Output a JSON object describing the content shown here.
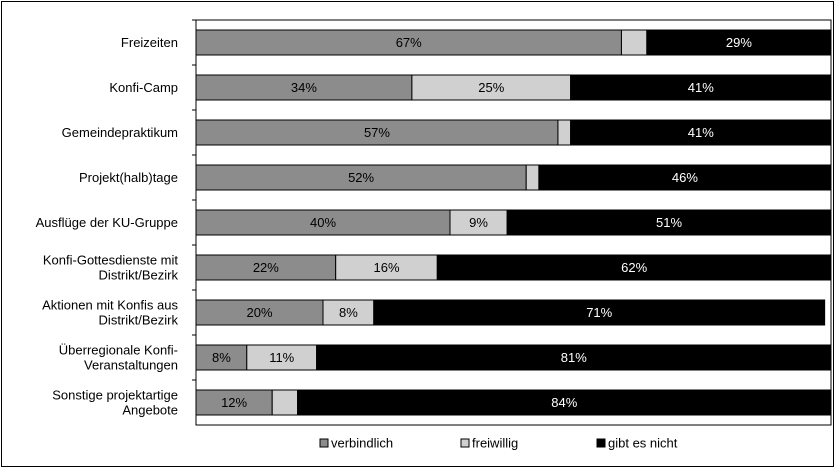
{
  "chart_data": {
    "type": "bar",
    "orientation": "horizontal",
    "stacked": true,
    "xlim": [
      0,
      100
    ],
    "categories": [
      "Freizeiten",
      "Konfi-Camp",
      "Gemeindepraktikum",
      "Projekt(halb)tage",
      "Ausflüge der KU-Gruppe",
      "Konfi-Gottesdienste mit Distrikt/Bezirk",
      "Aktionen mit Konfis aus Distrikt/Bezirk",
      "Überregionale Konfi-Veranstaltungen",
      "Sonstige projektartige Angebote"
    ],
    "category_lines": [
      [
        "Freizeiten"
      ],
      [
        "Konfi-Camp"
      ],
      [
        "Gemeindepraktikum"
      ],
      [
        "Projekt(halb)tage"
      ],
      [
        "Ausflüge der KU-Gruppe"
      ],
      [
        "Konfi-Gottesdienste mit",
        "Distrikt/Bezirk"
      ],
      [
        "Aktionen mit Konfis aus",
        "Distrikt/Bezirk"
      ],
      [
        "Überregionale Konfi-",
        "Veranstaltungen"
      ],
      [
        "Sonstige projektartige",
        "Angebote"
      ]
    ],
    "series": [
      {
        "name": "verbindlich",
        "color": "#8c8c8c",
        "text_color": "#000000",
        "values": [
          67,
          34,
          57,
          52,
          40,
          22,
          20,
          8,
          12
        ]
      },
      {
        "name": "freiwillig",
        "color": "#d0d0d0",
        "text_color": "#000000",
        "values": [
          4,
          25,
          2,
          2,
          9,
          16,
          8,
          11,
          4
        ]
      },
      {
        "name": "gibt es nicht",
        "color": "#000000",
        "text_color": "#ffffff",
        "values": [
          29,
          41,
          41,
          46,
          51,
          62,
          71,
          81,
          84
        ]
      }
    ],
    "data_labels": [
      [
        "67%",
        "",
        "29%"
      ],
      [
        "34%",
        "25%",
        "41%"
      ],
      [
        "57%",
        "",
        "41%"
      ],
      [
        "52%",
        "",
        "46%"
      ],
      [
        "40%",
        "9%",
        "51%"
      ],
      [
        "22%",
        "16%",
        "62%"
      ],
      [
        "20%",
        "8%",
        "71%"
      ],
      [
        "8%",
        "11%",
        "81%"
      ],
      [
        "12%",
        "",
        "84%"
      ]
    ],
    "legend_position": "bottom",
    "grid": false
  }
}
